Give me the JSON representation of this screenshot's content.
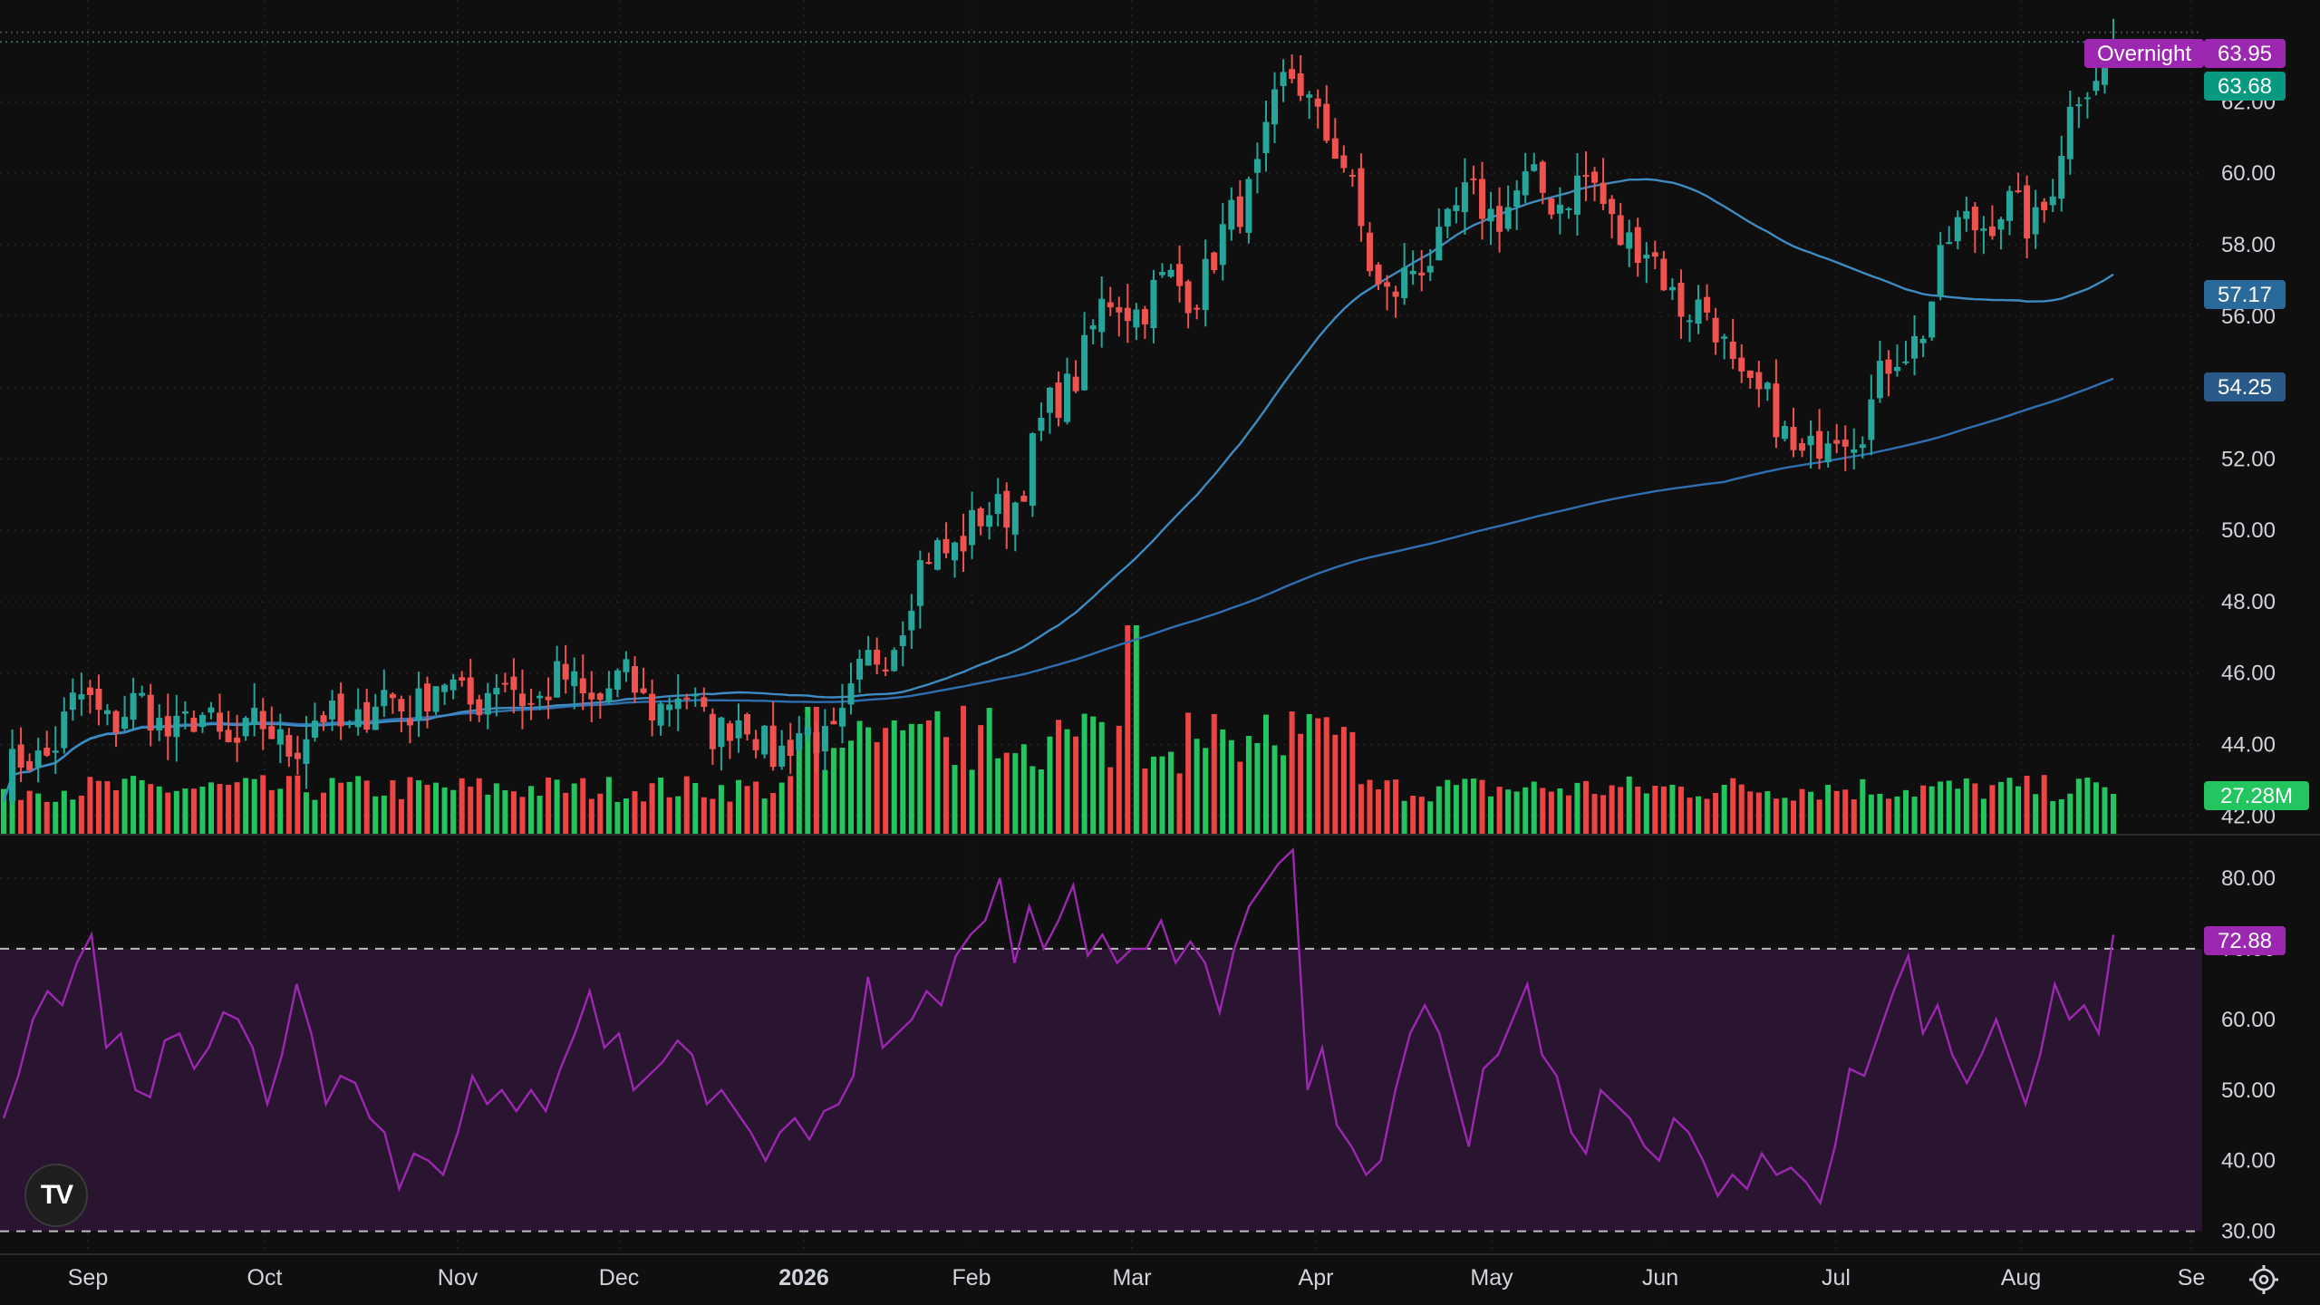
{
  "colors": {
    "background": "#0f0f0f",
    "up": "#26a69a",
    "down": "#ef5350",
    "volume_up": "#22c55e",
    "volume_down": "#ef4444",
    "ma_fast": "#3d8bc0",
    "ma_slow": "#2f6fb0",
    "rsi_line": "#9c27b0",
    "rsi_band": "#2a1530",
    "overnight_tag": "#9c27b0",
    "price_tag": "#089981"
  },
  "price_axis": {
    "labels": [
      "62.00",
      "60.00",
      "58.00",
      "56.00",
      "52.00",
      "50.00",
      "48.00",
      "46.00",
      "44.00",
      "42.00"
    ]
  },
  "rsi_axis": {
    "labels": [
      "80.00",
      "70.00",
      "60.00",
      "50.00",
      "40.00",
      "30.00"
    ],
    "upper_band": 70,
    "lower_band": 30
  },
  "time_axis": {
    "labels": [
      "Sep",
      "Oct",
      "Nov",
      "Dec",
      "2026",
      "Feb",
      "Mar",
      "Apr",
      "May",
      "Jun",
      "Jul",
      "Aug",
      "Se"
    ]
  },
  "tags": {
    "overnight_label": "Overnight",
    "overnight_value": "63.95",
    "last_price": "63.68",
    "ma_fast": "57.17",
    "ma_slow": "54.25",
    "volume": "27.28M",
    "rsi": "72.88"
  },
  "chart_data": {
    "type": "candlestick",
    "price_ylim": [
      41.5,
      64.6
    ],
    "rsi_ylim": [
      27,
      85
    ],
    "anchor_months": [
      "Sep",
      "Oct",
      "Nov",
      "Dec",
      "Jan",
      "Feb",
      "Mar",
      "Apr",
      "May",
      "Jun",
      "Jul",
      "Aug"
    ],
    "close_by_month_approx": [
      45.0,
      44.2,
      45.5,
      45.5,
      44.0,
      50.0,
      56.5,
      58.0,
      59.0,
      56.5,
      53.5,
      58.5
    ],
    "last_close": 63.68,
    "ma_fast_last": 57.17,
    "ma_slow_last": 54.25,
    "rsi_last": 72.88,
    "rsi_points": [
      46,
      52,
      60,
      64,
      62,
      68,
      72,
      56,
      58,
      50,
      49,
      57,
      58,
      53,
      56,
      61,
      60,
      56,
      48,
      55,
      65,
      58,
      48,
      52,
      51,
      46,
      44,
      36,
      41,
      40,
      38,
      44,
      52,
      48,
      50,
      47,
      50,
      47,
      53,
      58,
      64,
      56,
      58,
      50,
      52,
      54,
      57,
      55,
      48,
      50,
      47,
      44,
      40,
      44,
      46,
      43,
      47,
      48,
      52,
      66,
      56,
      58,
      60,
      64,
      62,
      69,
      72,
      74,
      80,
      68,
      76,
      70,
      74,
      79,
      69,
      72,
      68,
      70,
      70,
      74,
      68,
      71,
      68,
      61,
      70,
      76,
      79,
      82,
      84,
      50,
      56,
      45,
      42,
      38,
      40,
      50,
      58,
      62,
      58,
      50,
      42,
      53,
      55,
      60,
      65,
      55,
      52,
      44,
      41,
      50,
      48,
      46,
      42,
      40,
      46,
      44,
      40,
      35,
      38,
      36,
      41,
      38,
      39,
      37,
      34,
      42,
      53,
      52,
      58,
      64,
      69,
      58,
      62,
      55,
      51,
      55,
      60,
      54,
      48,
      55,
      65,
      60,
      62,
      58,
      72
    ]
  }
}
